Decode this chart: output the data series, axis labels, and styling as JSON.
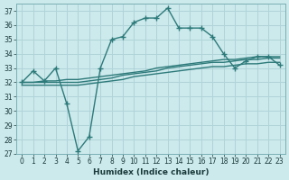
{
  "xlabel": "Humidex (Indice chaleur)",
  "bg_color": "#cce9ec",
  "grid_color": "#b0d4d8",
  "line_color": "#2d7a7a",
  "xlim": [
    -0.5,
    23.5
  ],
  "ylim": [
    27,
    37.5
  ],
  "xticks": [
    0,
    1,
    2,
    3,
    4,
    5,
    6,
    7,
    8,
    9,
    10,
    11,
    12,
    13,
    14,
    15,
    16,
    17,
    18,
    19,
    20,
    21,
    22,
    23
  ],
  "yticks": [
    27,
    28,
    29,
    30,
    31,
    32,
    33,
    34,
    35,
    36,
    37
  ],
  "series": [
    {
      "x": [
        0,
        1,
        2,
        3,
        4,
        5,
        6,
        7,
        8,
        9,
        10,
        11,
        12,
        13,
        14,
        15,
        16,
        17,
        18,
        19,
        20,
        21,
        22,
        23
      ],
      "y": [
        32.0,
        32.8,
        32.1,
        33.0,
        30.5,
        27.2,
        28.2,
        33.0,
        35.0,
        35.2,
        36.2,
        36.5,
        36.5,
        37.2,
        35.8,
        35.8,
        35.8,
        35.2,
        34.0,
        33.0,
        33.5,
        33.8,
        33.8,
        33.2
      ],
      "marker": "+",
      "marker_size": 5,
      "linewidth": 1.0
    },
    {
      "x": [
        0,
        1,
        2,
        3,
        4,
        5,
        6,
        7,
        8,
        9,
        10,
        11,
        12,
        13,
        14,
        15,
        16,
        17,
        18,
        19,
        20,
        21,
        22,
        23
      ],
      "y": [
        32.0,
        32.0,
        32.1,
        32.1,
        32.2,
        32.2,
        32.3,
        32.4,
        32.5,
        32.6,
        32.7,
        32.8,
        33.0,
        33.1,
        33.2,
        33.3,
        33.4,
        33.5,
        33.6,
        33.6,
        33.7,
        33.8,
        33.8,
        33.8
      ],
      "marker": null,
      "marker_size": 0,
      "linewidth": 1.0
    },
    {
      "x": [
        0,
        1,
        2,
        3,
        4,
        5,
        6,
        7,
        8,
        9,
        10,
        11,
        12,
        13,
        14,
        15,
        16,
        17,
        18,
        19,
        20,
        21,
        22,
        23
      ],
      "y": [
        32.0,
        32.0,
        32.0,
        32.0,
        32.0,
        32.0,
        32.1,
        32.2,
        32.3,
        32.5,
        32.6,
        32.7,
        32.8,
        33.0,
        33.1,
        33.2,
        33.3,
        33.4,
        33.4,
        33.5,
        33.6,
        33.6,
        33.7,
        33.7
      ],
      "marker": null,
      "marker_size": 0,
      "linewidth": 1.0
    },
    {
      "x": [
        0,
        1,
        2,
        3,
        4,
        5,
        6,
        7,
        8,
        9,
        10,
        11,
        12,
        13,
        14,
        15,
        16,
        17,
        18,
        19,
        20,
        21,
        22,
        23
      ],
      "y": [
        31.8,
        31.8,
        31.8,
        31.8,
        31.8,
        31.8,
        31.9,
        32.0,
        32.1,
        32.2,
        32.4,
        32.5,
        32.6,
        32.7,
        32.8,
        32.9,
        33.0,
        33.1,
        33.1,
        33.2,
        33.3,
        33.3,
        33.4,
        33.4
      ],
      "marker": null,
      "marker_size": 0,
      "linewidth": 1.0
    }
  ]
}
